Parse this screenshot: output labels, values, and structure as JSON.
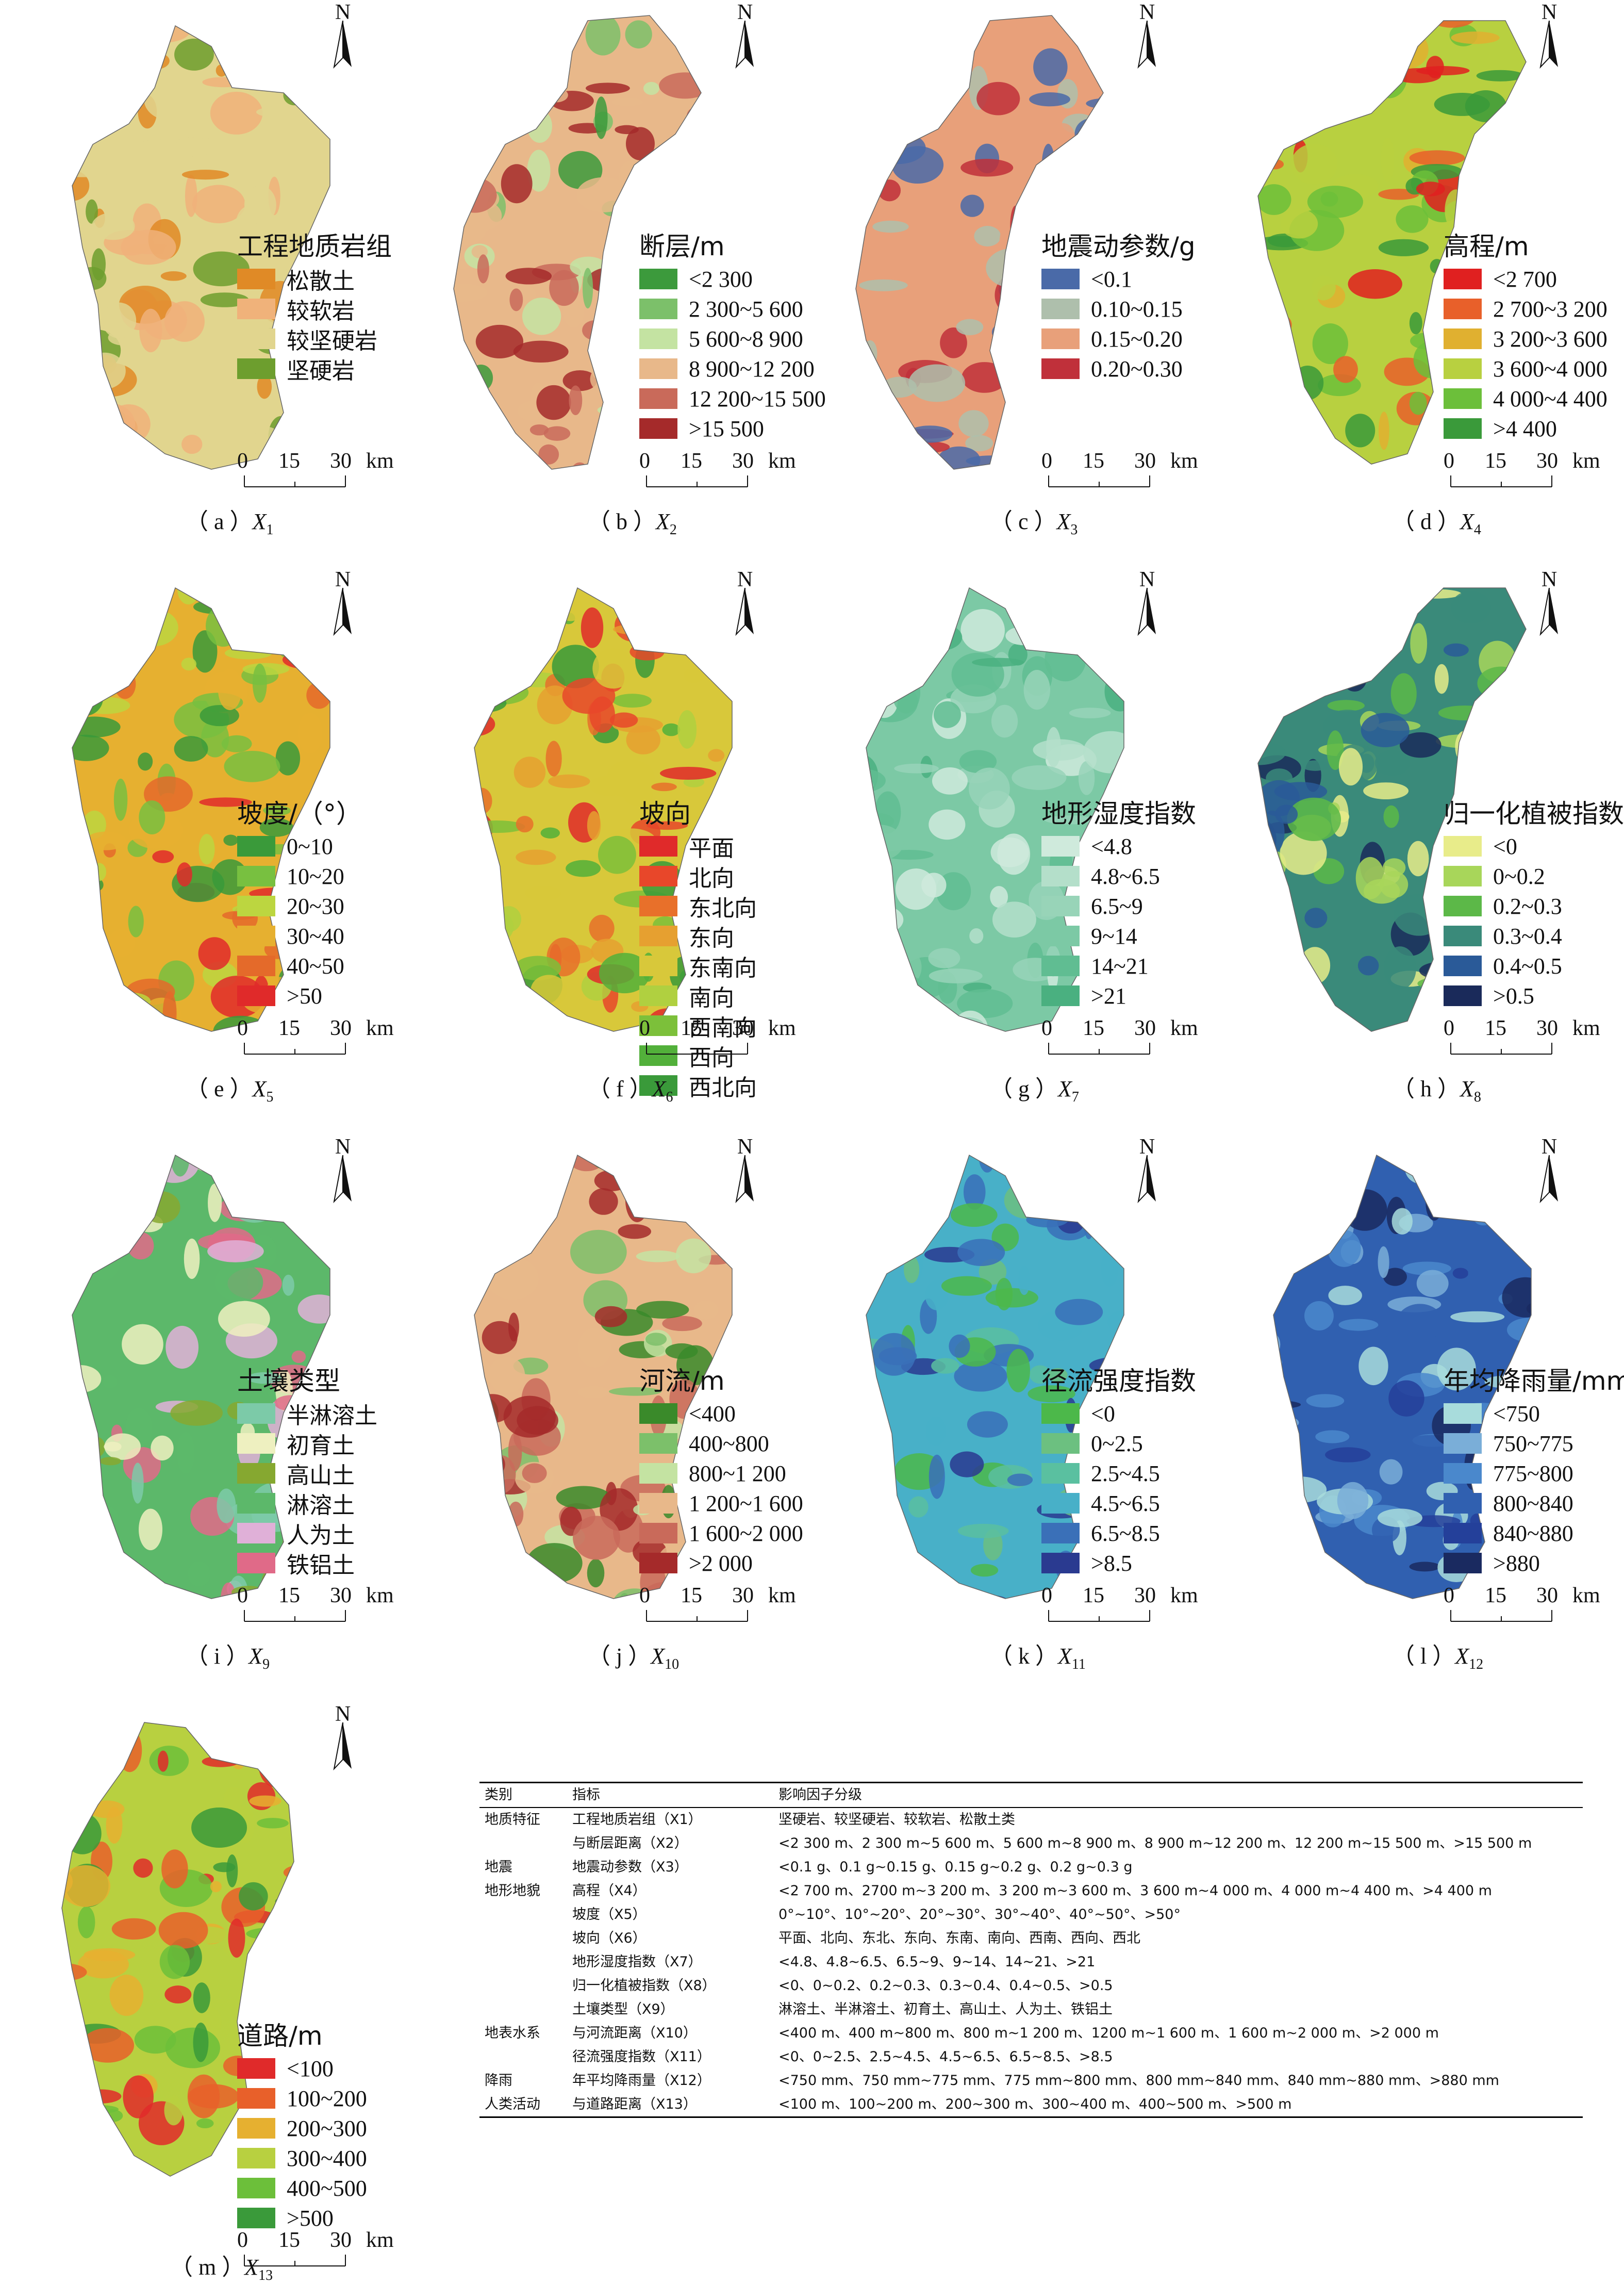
{
  "north_label": "N",
  "scale": {
    "ticks": [
      "0",
      "15",
      "30"
    ],
    "unit": "km"
  },
  "panels": [
    {
      "id": "a",
      "caption_prefix": "（ a ）",
      "var": "X",
      "sub": "1",
      "legend_title": "工程地质岩组",
      "items": [
        {
          "label": "松散土",
          "color": "#e08a26"
        },
        {
          "label": "较软岩",
          "color": "#f0b27a"
        },
        {
          "label": "较坚硬岩",
          "color": "#e1d58e"
        },
        {
          "label": "坚硬岩",
          "color": "#6d9e2e"
        }
      ]
    },
    {
      "id": "b",
      "caption_prefix": "（ b ）",
      "var": "X",
      "sub": "2",
      "legend_title": "断层/m",
      "items": [
        {
          "label": "<2 300",
          "color": "#3c9a3c"
        },
        {
          "label": "2 300~5 600",
          "color": "#7cc06a"
        },
        {
          "label": "5 600~8 900",
          "color": "#c4e3a2"
        },
        {
          "label": "8 900~12 200",
          "color": "#e8b88a"
        },
        {
          "label": "12 200~15 500",
          "color": "#c96a5a"
        },
        {
          "label": ">15 500",
          "color": "#a52a2a"
        }
      ]
    },
    {
      "id": "c",
      "caption_prefix": "（ c ）",
      "var": "X",
      "sub": "3",
      "legend_title": "地震动参数/g",
      "items": [
        {
          "label": "<0.1",
          "color": "#4a6aa8"
        },
        {
          "label": "0.10~0.15",
          "color": "#aebfac"
        },
        {
          "label": "0.15~0.20",
          "color": "#e8a07a"
        },
        {
          "label": "0.20~0.30",
          "color": "#c0303a"
        }
      ]
    },
    {
      "id": "d",
      "caption_prefix": "（ d ）",
      "var": "X",
      "sub": "4",
      "legend_title": "高程/m",
      "items": [
        {
          "label": "<2 700",
          "color": "#e02020"
        },
        {
          "label": "2 700~3 200",
          "color": "#e8602a"
        },
        {
          "label": "3 200~3 600",
          "color": "#e0b030"
        },
        {
          "label": "3 600~4 000",
          "color": "#b8d040"
        },
        {
          "label": "4 000~4 400",
          "color": "#6cbf3a"
        },
        {
          "label": ">4 400",
          "color": "#3a9a3a"
        }
      ]
    },
    {
      "id": "e",
      "caption_prefix": "（ e ）",
      "var": "X",
      "sub": "5",
      "legend_title": "坡度/（°）",
      "items": [
        {
          "label": "0~10",
          "color": "#3a9a3a"
        },
        {
          "label": "10~20",
          "color": "#78c040"
        },
        {
          "label": "20~30",
          "color": "#bcd640"
        },
        {
          "label": "30~40",
          "color": "#e6b030"
        },
        {
          "label": "40~50",
          "color": "#e46a2a"
        },
        {
          "label": ">50",
          "color": "#e02a2a"
        }
      ]
    },
    {
      "id": "f",
      "caption_prefix": "（ f ）",
      "var": "X",
      "sub": "6",
      "legend_title": "坡向",
      "items": [
        {
          "label": "平面",
          "color": "#e02a2a"
        },
        {
          "label": "北向",
          "color": "#e8472a"
        },
        {
          "label": "东北向",
          "color": "#e8702a"
        },
        {
          "label": "东向",
          "color": "#e6a030"
        },
        {
          "label": "东南向",
          "color": "#d8c83a"
        },
        {
          "label": "南向",
          "color": "#b0d040"
        },
        {
          "label": "西南向",
          "color": "#7cc03a"
        },
        {
          "label": "西向",
          "color": "#52b03a"
        },
        {
          "label": "西北向",
          "color": "#3a9a3a"
        }
      ]
    },
    {
      "id": "g",
      "caption_prefix": "（ g ）",
      "var": "X",
      "sub": "7",
      "legend_title": "地形湿度指数",
      "items": [
        {
          "label": "<4.8",
          "color": "#cfeadc"
        },
        {
          "label": "4.8~6.5",
          "color": "#b4dfca"
        },
        {
          "label": "6.5~9",
          "color": "#98d4b8"
        },
        {
          "label": "9~14",
          "color": "#7cc9a5"
        },
        {
          "label": "14~21",
          "color": "#60bd92"
        },
        {
          "label": ">21",
          "color": "#4ab080"
        }
      ]
    },
    {
      "id": "h",
      "caption_prefix": "（ h ）",
      "var": "X",
      "sub": "8",
      "legend_title": "归一化植被指数",
      "items": [
        {
          "label": "<0",
          "color": "#e8ec8a"
        },
        {
          "label": "0~0.2",
          "color": "#a8d65a"
        },
        {
          "label": "0.2~0.3",
          "color": "#5cb848"
        },
        {
          "label": "0.3~0.4",
          "color": "#3a8a7a"
        },
        {
          "label": "0.4~0.5",
          "color": "#2a5a98"
        },
        {
          "label": ">0.5",
          "color": "#1a2a5a"
        }
      ]
    },
    {
      "id": "i",
      "caption_prefix": "（ i ）",
      "var": "X",
      "sub": "9",
      "legend_title": "土壤类型",
      "items": [
        {
          "label": "半淋溶土",
          "color": "#7ccaa8"
        },
        {
          "label": "初育土",
          "color": "#eef0c0"
        },
        {
          "label": "高山土",
          "color": "#86a830"
        },
        {
          "label": "淋溶土",
          "color": "#5cb86a"
        },
        {
          "label": "人为土",
          "color": "#e0b0d8"
        },
        {
          "label": "铁铝土",
          "color": "#e06a88"
        }
      ]
    },
    {
      "id": "j",
      "caption_prefix": "（ j ）",
      "var": "X",
      "sub": "10",
      "legend_title": "河流/m",
      "items": [
        {
          "label": "<400",
          "color": "#3a8a2a"
        },
        {
          "label": "400~800",
          "color": "#7cc06a"
        },
        {
          "label": "800~1 200",
          "color": "#c4e3a2"
        },
        {
          "label": "1 200~1 600",
          "color": "#e8b88a"
        },
        {
          "label": "1 600~2 000",
          "color": "#c96a5a"
        },
        {
          "label": ">2 000",
          "color": "#a52a2a"
        }
      ]
    },
    {
      "id": "k",
      "caption_prefix": "（ k ）",
      "var": "X",
      "sub": "11",
      "legend_title": "径流强度指数",
      "items": [
        {
          "label": "<0",
          "color": "#4cb84a"
        },
        {
          "label": "0~2.5",
          "color": "#6cc080"
        },
        {
          "label": "2.5~4.5",
          "color": "#5ac0a0"
        },
        {
          "label": "4.5~6.5",
          "color": "#48b0c8"
        },
        {
          "label": "6.5~8.5",
          "color": "#3a70b8"
        },
        {
          "label": ">8.5",
          "color": "#2a3a90"
        }
      ]
    },
    {
      "id": "l",
      "caption_prefix": "（ l ）",
      "var": "X",
      "sub": "12",
      "legend_title": "年均降雨量/mm",
      "items": [
        {
          "label": "<750",
          "color": "#a8dcdc"
        },
        {
          "label": "750~775",
          "color": "#7aaed8"
        },
        {
          "label": "775~800",
          "color": "#4a88cc"
        },
        {
          "label": "800~840",
          "color": "#3060b0"
        },
        {
          "label": "840~880",
          "color": "#24409a"
        },
        {
          "label": ">880",
          "color": "#1a2a60"
        }
      ]
    },
    {
      "id": "m",
      "caption_prefix": "（ m ）",
      "var": "X",
      "sub": "13",
      "legend_title": "道路/m",
      "items": [
        {
          "label": "<100",
          "color": "#e02a2a"
        },
        {
          "label": "100~200",
          "color": "#e8602a"
        },
        {
          "label": "200~300",
          "color": "#e6b030"
        },
        {
          "label": "300~400",
          "color": "#b8d040"
        },
        {
          "label": "400~500",
          "color": "#6cbf3a"
        },
        {
          "label": ">500",
          "color": "#3a9a3a"
        }
      ]
    }
  ],
  "table": {
    "headers": [
      "类别",
      "指标",
      "影响因子分级"
    ],
    "rows": [
      {
        "cat": "地质特征",
        "ind": "工程地质岩组（X1）",
        "grade": "坚硬岩、较坚硬岩、较软岩、松散土类"
      },
      {
        "cat": "",
        "ind": "与断层距离（X2）",
        "grade": "<2 300 m、2 300 m~5 600 m、5 600 m~8 900 m、8 900 m~12 200 m、12 200 m~15 500 m、>15 500 m"
      },
      {
        "cat": "地震",
        "ind": "地震动参数（X3）",
        "grade": "<0.1 g、0.1 g~0.15 g、0.15 g~0.2 g、0.2 g~0.3 g"
      },
      {
        "cat": "地形地貌",
        "ind": "高程（X4）",
        "grade": "<2 700 m、2700 m~3 200 m、3 200 m~3 600 m、3 600 m~4 000 m、4 000 m~4 400 m、>4 400 m"
      },
      {
        "cat": "",
        "ind": "坡度（X5）",
        "grade": "0°~10°、10°~20°、20°~30°、30°~40°、40°~50°、>50°"
      },
      {
        "cat": "",
        "ind": "坡向（X6）",
        "grade": "平面、北向、东北、东向、东南、南向、西南、西向、西北"
      },
      {
        "cat": "",
        "ind": "地形湿度指数（X7）",
        "grade": "<4.8、4.8~6.5、6.5~9、9~14、14~21、>21"
      },
      {
        "cat": "",
        "ind": "归一化植被指数（X8）",
        "grade": "<0、0~0.2、0.2~0.3、0.3~0.4、0.4~0.5、>0.5"
      },
      {
        "cat": "",
        "ind": "土壤类型（X9）",
        "grade": "淋溶土、半淋溶土、初育土、高山土、人为土、铁铝土"
      },
      {
        "cat": "地表水系",
        "ind": "与河流距离（X10）",
        "grade": "<400 m、400 m~800 m、800 m~1 200 m、1200 m~1 600 m、1 600 m~2 000 m、>2 000 m"
      },
      {
        "cat": "",
        "ind": "径流强度指数（X11）",
        "grade": "<0、0~2.5、2.5~4.5、4.5~6.5、6.5~8.5、>8.5"
      },
      {
        "cat": "降雨",
        "ind": "年平均降雨量（X12）",
        "grade": "<750 mm、750 mm~775 mm、775 mm~800 mm、800 mm~840 mm、840 mm~880 mm、>880 mm"
      },
      {
        "cat": "人类活动",
        "ind": "与道路距离（X13）",
        "grade": "<100 m、100~200 m、200~300 m、300~400 m、400~500 m、>500 m"
      }
    ]
  }
}
